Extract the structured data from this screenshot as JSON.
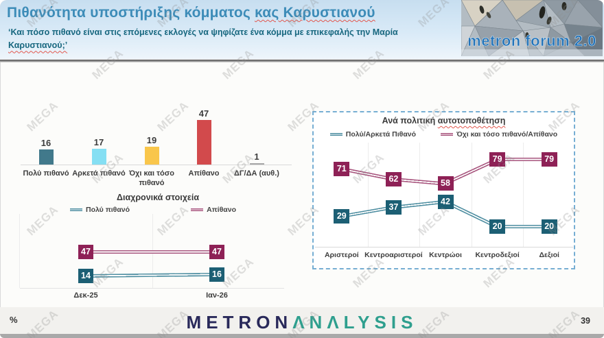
{
  "page": {
    "number": "39",
    "percent": "%"
  },
  "watermark": {
    "text": "MEGA"
  },
  "header": {
    "title_plain": "Πιθανότητα υποστήριξης κόμματος ",
    "title_underlined": "κας Καρυστιανού",
    "subtitle_line1": "‘Και πόσο πιθανό είναι στις επόμενες εκλογές να ψηφίζατε ένα κόμμα με επικεφαλής την Μαρία",
    "subtitle_line2": "Καρυστιανού;’",
    "logo_text": "metron forum 2.0"
  },
  "brand": {
    "metron": "METRON",
    "analysis": "ΛNΛLYSIS"
  },
  "chart_data": [
    {
      "type": "bar",
      "name": "likelihood-of-support",
      "categories": [
        "Πολύ πιθανό",
        "Αρκετά πιθανό",
        "Όχι και τόσο πιθανό",
        "Απίθανο",
        "ΔΓ/ΔΑ (αυθ.)"
      ],
      "values": [
        16,
        17,
        19,
        47,
        1
      ],
      "colors": [
        "#41798b",
        "#85dff3",
        "#f9c64b",
        "#d24a4c",
        "#a8a8a8"
      ],
      "ylim": [
        0,
        50
      ],
      "grid": false
    },
    {
      "type": "line",
      "name": "trend-over-time",
      "title": "Διαχρονικά στοιχεία",
      "categories": [
        "Δεκ-25",
        "Ιαν-26"
      ],
      "series": [
        {
          "name": "Πολύ πιθανό",
          "values": [
            14,
            16
          ],
          "color": "#1c5f74",
          "line_color": "#4e8ea1"
        },
        {
          "name": "Απίθανο",
          "values": [
            47,
            47
          ],
          "color": "#8e2156",
          "line_color": "#a8557e"
        }
      ],
      "legend_position": "top",
      "ylim": [
        0,
        60
      ],
      "grid": true
    },
    {
      "type": "line",
      "name": "by-political-self-placement",
      "title_plain": "Ανά πολιτική ",
      "title_underlined": "αυτοτοποθέτηση",
      "categories": [
        "Αριστεροί",
        "Κεντροαριστεροί",
        "Κεντρώοι",
        "Κεντροδεξιοί",
        "Δεξιοί"
      ],
      "series": [
        {
          "name": "Πολύ/Αρκετά Πιθανό",
          "values": [
            29,
            37,
            42,
            20,
            20
          ],
          "color": "#1c5f74",
          "line_color": "#4e8ea1"
        },
        {
          "name": "Όχι και τόσο πιθανό/Απίθανο",
          "values": [
            71,
            62,
            58,
            79,
            79
          ],
          "color": "#8e2156",
          "line_color": "#a8557e"
        }
      ],
      "legend_position": "top",
      "ylim": [
        0,
        100
      ],
      "grid": true
    }
  ]
}
